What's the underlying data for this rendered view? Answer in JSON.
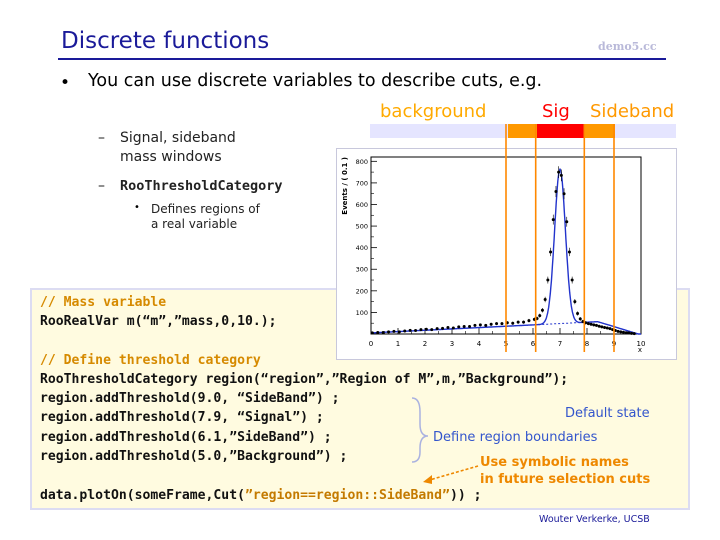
{
  "slide": {
    "title": "Discrete functions",
    "tag": "demo5.cc",
    "footer": "Wouter Verkerke, UCSB"
  },
  "bullets": {
    "main": "You can use discrete variables to describe cuts, e.g.",
    "sub1_line1": "Signal, sideband",
    "sub1_line2": "mass windows",
    "sub2": "RooThresholdCategory",
    "sub3_line1": "Defines regions of",
    "sub3_line2": "a real variable"
  },
  "regions": {
    "background": "background",
    "sig": "Sig",
    "sideband": "Sideband",
    "colors": {
      "background": "#ffaa00",
      "sig": "#ff0000",
      "sideband": "#ff9900",
      "bar_blue": "#e5e5ff"
    }
  },
  "code": {
    "c1": "// Mass variable",
    "l1": "RooRealVar m(“m”,”mass,0,10.);",
    "c2": "// Define threshold category",
    "l2": "RooThresholdCategory region(“region”,”Region of M”,m,”Background”);",
    "l3": "region.addThreshold(9.0, “SideBand”) ;",
    "l4": "region.addThreshold(7.9, “Signal”) ;",
    "l5": "region.addThreshold(6.1,”SideBand”) ;",
    "l6": "region.addThreshold(5.0,”Background”) ;",
    "l7a": "data.plotOn(someFrame,Cut(",
    "l7b": "”region==region::SideBand”",
    "l7c": ")) ;"
  },
  "annotations": {
    "default_state": "Default state",
    "define_regions": "Define region boundaries",
    "symbolic_1": "Use symbolic names",
    "symbolic_2": "in future selection cuts"
  },
  "chart_data": {
    "type": "scatter",
    "ylabel": "Events / ( 0.1 )",
    "xlabel": "x",
    "xlim": [
      0,
      10
    ],
    "ylim": [
      0,
      820
    ],
    "x_ticks": [
      "0",
      "1",
      "2",
      "3",
      "4",
      "5",
      "6",
      "7",
      "8",
      "9",
      "10"
    ],
    "y_ticks": [
      "100",
      "200",
      "300",
      "400",
      "500",
      "600",
      "700",
      "800"
    ],
    "thresholds": [
      5.0,
      6.1,
      7.9,
      9.0
    ],
    "fit_peak": {
      "mean": 7.0,
      "sigma": 0.2,
      "amplitude": 715
    },
    "points": [
      [
        0.05,
        5
      ],
      [
        0.25,
        7
      ],
      [
        0.45,
        7
      ],
      [
        0.65,
        10
      ],
      [
        0.85,
        12
      ],
      [
        1.05,
        10
      ],
      [
        1.25,
        14
      ],
      [
        1.45,
        17
      ],
      [
        1.65,
        16
      ],
      [
        1.85,
        20
      ],
      [
        2.05,
        22
      ],
      [
        2.25,
        20
      ],
      [
        2.45,
        25
      ],
      [
        2.65,
        26
      ],
      [
        2.85,
        30
      ],
      [
        3.05,
        28
      ],
      [
        3.25,
        33
      ],
      [
        3.45,
        35
      ],
      [
        3.65,
        35
      ],
      [
        3.85,
        40
      ],
      [
        4.05,
        42
      ],
      [
        4.25,
        40
      ],
      [
        4.45,
        45
      ],
      [
        4.65,
        48
      ],
      [
        4.85,
        48
      ],
      [
        5.05,
        52
      ],
      [
        5.25,
        50
      ],
      [
        5.45,
        55
      ],
      [
        5.65,
        55
      ],
      [
        5.85,
        62
      ],
      [
        6.05,
        68
      ],
      [
        6.15,
        72
      ],
      [
        6.25,
        85
      ],
      [
        6.35,
        110
      ],
      [
        6.45,
        160
      ],
      [
        6.55,
        250
      ],
      [
        6.65,
        380
      ],
      [
        6.75,
        530
      ],
      [
        6.85,
        660
      ],
      [
        6.95,
        750
      ],
      [
        7.05,
        735
      ],
      [
        7.15,
        650
      ],
      [
        7.25,
        520
      ],
      [
        7.35,
        380
      ],
      [
        7.45,
        250
      ],
      [
        7.55,
        150
      ],
      [
        7.65,
        95
      ],
      [
        7.75,
        70
      ],
      [
        7.85,
        58
      ],
      [
        7.95,
        52
      ],
      [
        8.05,
        48
      ],
      [
        8.15,
        45
      ],
      [
        8.25,
        42
      ],
      [
        8.35,
        40
      ],
      [
        8.45,
        36
      ],
      [
        8.55,
        33
      ],
      [
        8.65,
        30
      ],
      [
        8.75,
        28
      ],
      [
        8.85,
        25
      ],
      [
        8.95,
        20
      ],
      [
        9.05,
        16
      ],
      [
        9.15,
        12
      ],
      [
        9.25,
        10
      ],
      [
        9.35,
        8
      ],
      [
        9.45,
        6
      ],
      [
        9.55,
        5
      ],
      [
        9.65,
        3
      ],
      [
        9.75,
        2
      ]
    ]
  }
}
